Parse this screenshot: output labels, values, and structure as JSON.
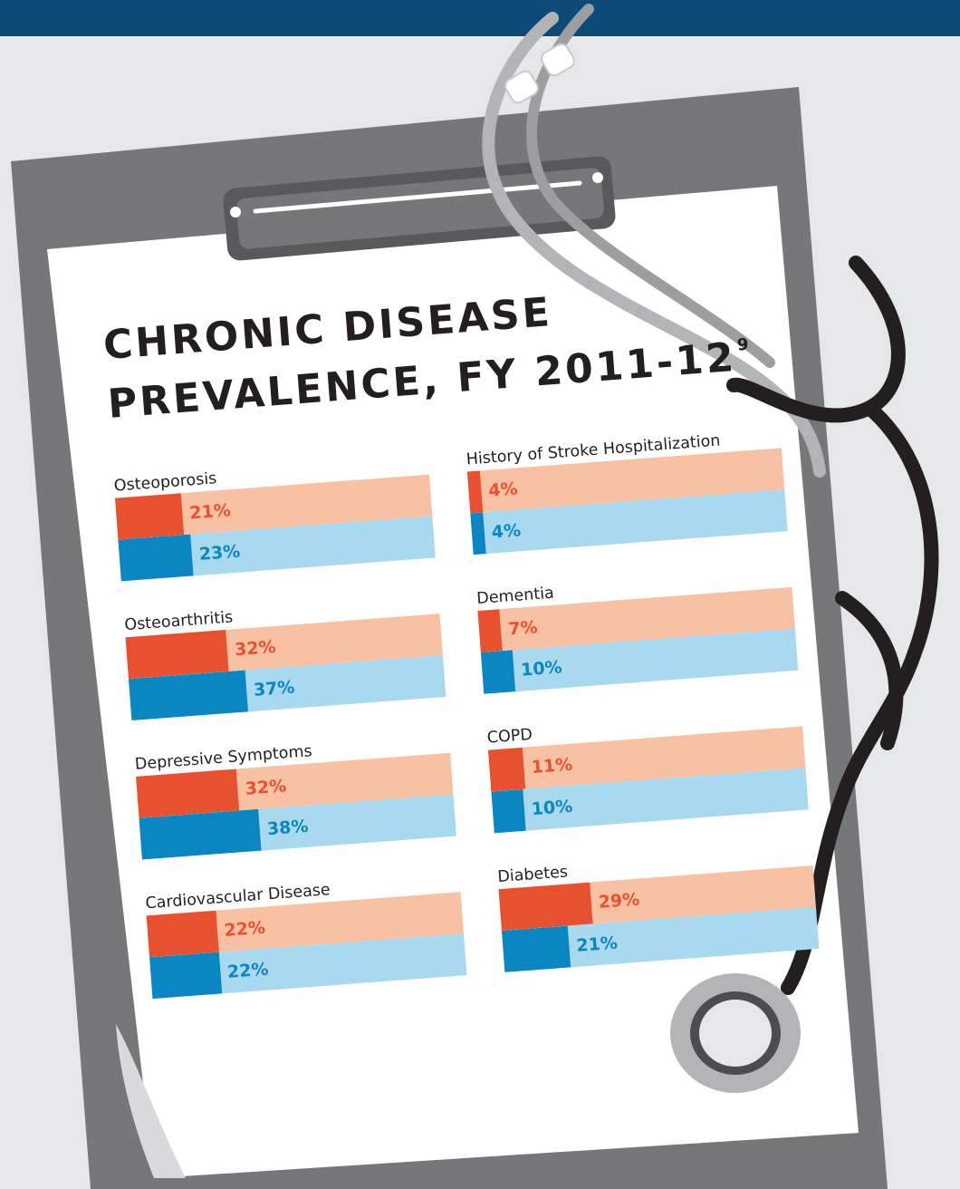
{
  "title": {
    "line1": "CHRONIC DISEASE",
    "line2": "PREVALENCE, FY 2011-12",
    "footnote": "9"
  },
  "colors": {
    "header_bar": "#0d4a78",
    "series_1_dark": "#e8512f",
    "series_1_light": "#f9c1a4",
    "series_2_dark": "#0a86c2",
    "series_2_light": "#a9d9ee"
  },
  "chart_data": {
    "type": "bar",
    "title": "CHRONIC DISEASE PREVALENCE, FY 2011-12",
    "categories": [
      "Osteoporosis",
      "Osteoarthritis",
      "Depressive Symptoms",
      "Cardiovascular Disease",
      "History of Stroke Hospitalization",
      "Dementia",
      "COPD",
      "Diabetes"
    ],
    "series": [
      {
        "color": "#e8512f",
        "values": [
          21,
          32,
          32,
          22,
          4,
          7,
          11,
          29
        ]
      },
      {
        "color": "#0a86c2",
        "values": [
          23,
          37,
          38,
          22,
          4,
          10,
          10,
          21
        ]
      }
    ],
    "ylim": [
      0,
      100
    ],
    "unit": "%",
    "labels": {
      "s0": [
        "21%",
        "32%",
        "32%",
        "22%",
        "4%",
        "7%",
        "11%",
        "29%"
      ],
      "s1": [
        "23%",
        "37%",
        "38%",
        "22%",
        "4%",
        "10%",
        "10%",
        "21%"
      ]
    }
  }
}
